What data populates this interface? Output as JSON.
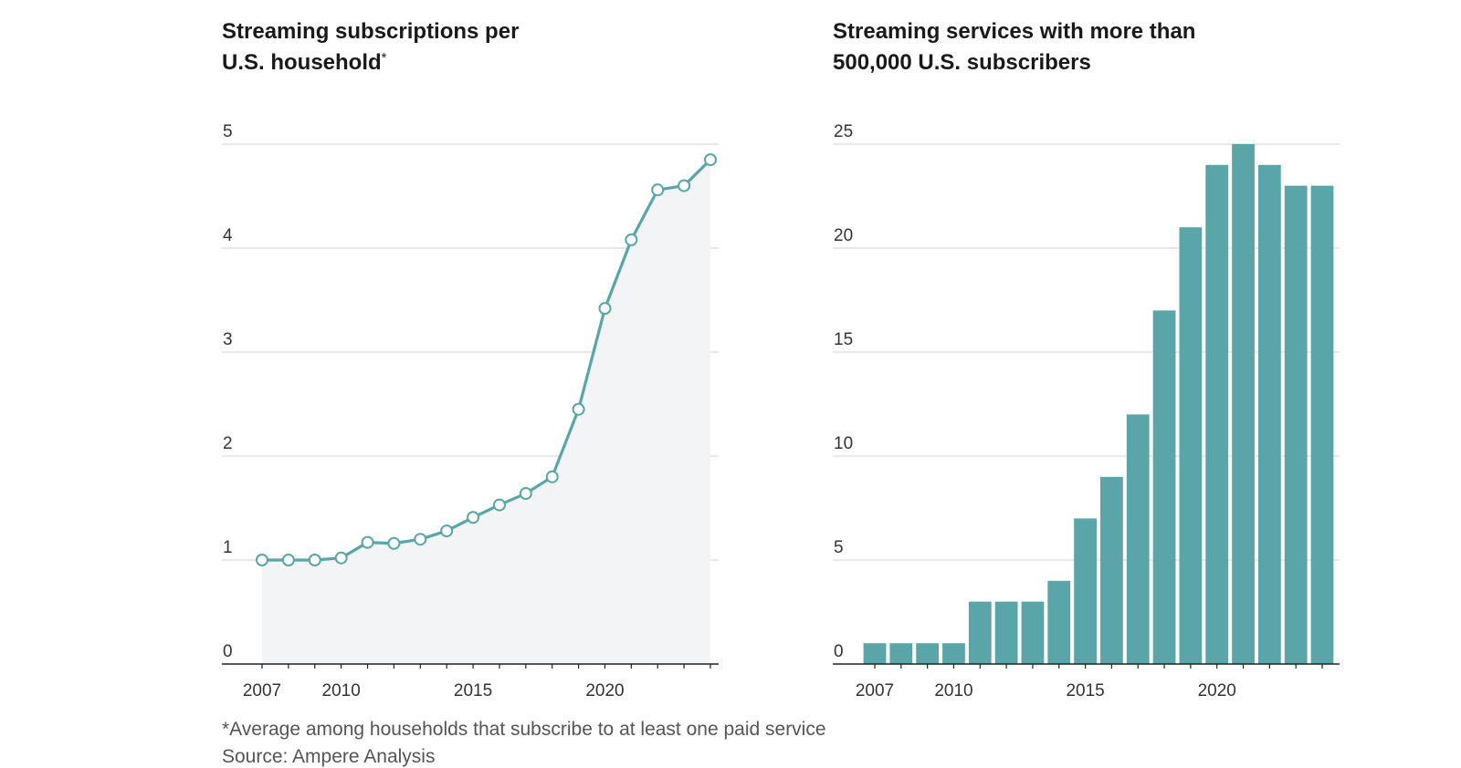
{
  "left_chart": {
    "title_line1": "Streaming subscriptions per",
    "title_line2": "U.S. household",
    "title_mark": "*"
  },
  "right_chart": {
    "title_line1": "Streaming services with more than",
    "title_line2": "500,000 U.S. subscribers"
  },
  "footnote": "*Average among households that subscribe to at least one paid service",
  "source": "Source: Ampere Analysis",
  "colors": {
    "accent": "#5aa5a8",
    "area": "#f3f4f5",
    "grid": "#d9d9d9",
    "axis": "#222222"
  },
  "chart_data": [
    {
      "type": "line",
      "title": "Streaming subscriptions per U.S. household*",
      "x": [
        2007,
        2008,
        2009,
        2010,
        2011,
        2012,
        2013,
        2014,
        2015,
        2016,
        2017,
        2018,
        2019,
        2020,
        2021,
        2022,
        2023,
        2024
      ],
      "values": [
        1.0,
        1.0,
        1.0,
        1.02,
        1.17,
        1.16,
        1.2,
        1.28,
        1.41,
        1.53,
        1.64,
        1.8,
        2.45,
        3.42,
        4.08,
        4.56,
        4.6,
        4.85
      ],
      "ylim": [
        0,
        5
      ],
      "yticks": [
        0,
        1,
        2,
        3,
        4,
        5
      ],
      "xticks": [
        2007,
        2010,
        2015,
        2020
      ],
      "area_fill": true,
      "markers": "hollow circles",
      "grid": true
    },
    {
      "type": "bar",
      "title": "Streaming services with more than 500,000 U.S. subscribers",
      "x": [
        2007,
        2008,
        2009,
        2010,
        2011,
        2012,
        2013,
        2014,
        2015,
        2016,
        2017,
        2018,
        2019,
        2020,
        2021,
        2022,
        2023,
        2024
      ],
      "values": [
        1,
        1,
        1,
        1,
        3,
        3,
        3,
        4,
        7,
        9,
        12,
        17,
        21,
        24,
        25,
        24,
        23,
        23
      ],
      "ylim": [
        0,
        25
      ],
      "yticks": [
        0,
        5,
        10,
        15,
        20,
        25
      ],
      "xticks": [
        2007,
        2010,
        2015,
        2020
      ],
      "grid": true
    }
  ]
}
